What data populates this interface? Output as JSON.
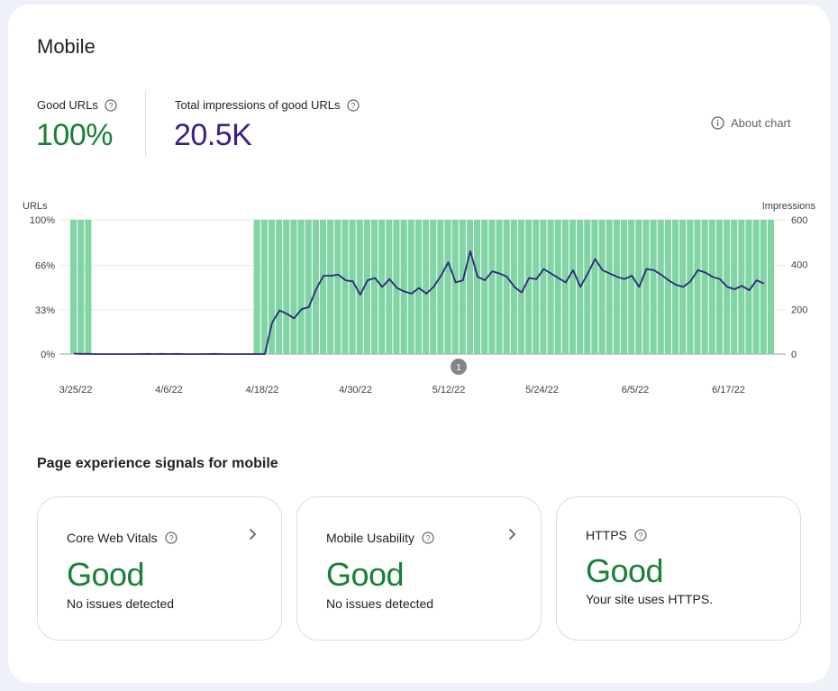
{
  "page": {
    "title": "Mobile"
  },
  "metrics": {
    "good_urls": {
      "label": "Good URLs",
      "value": "100%",
      "color": "#188038"
    },
    "impressions": {
      "label": "Total impressions of good URLs",
      "value": "20.5K",
      "color": "#3c1e86"
    }
  },
  "about_chart": {
    "label": "About chart"
  },
  "chart_data": {
    "type": "bar",
    "left_axis": {
      "title": "URLs",
      "ticks": [
        "100%",
        "66%",
        "33%",
        "0%"
      ],
      "range": [
        0,
        100
      ]
    },
    "right_axis": {
      "title": "Impressions",
      "ticks": [
        "600",
        "400",
        "200",
        "0"
      ],
      "range": [
        0,
        600
      ]
    },
    "x_labels": [
      "3/25/22",
      "4/6/22",
      "4/18/22",
      "4/30/22",
      "5/12/22",
      "5/24/22",
      "6/5/22",
      "6/17/22"
    ],
    "annotation": "1",
    "bar_color": "#81d4a4",
    "line_color": "#2a2a7c",
    "series": [
      {
        "name": "Good URLs",
        "axis": "left",
        "unit": "%",
        "values": [
          100,
          100,
          100,
          0,
          0,
          0,
          0,
          0,
          0,
          0,
          0,
          0,
          0,
          0,
          0,
          0,
          0,
          0,
          0,
          0,
          0,
          0,
          0,
          0,
          0,
          100,
          100,
          100,
          100,
          100,
          100,
          100,
          100,
          100,
          100,
          100,
          100,
          100,
          100,
          100,
          100,
          100,
          100,
          100,
          100,
          100,
          100,
          100,
          100,
          100,
          100,
          100,
          100,
          100,
          100,
          100,
          100,
          100,
          100,
          100,
          100,
          100,
          100,
          100,
          100,
          100,
          100,
          100,
          100,
          100,
          100,
          100,
          100,
          100,
          100,
          100,
          100,
          100,
          100,
          100,
          100,
          100,
          100,
          100,
          100,
          100,
          100,
          100,
          100,
          100,
          100,
          100,
          100,
          100,
          100,
          100
        ]
      },
      {
        "name": "Impressions",
        "axis": "right",
        "values": [
          2,
          1,
          1,
          0,
          0,
          0,
          0,
          0,
          0,
          0,
          1,
          0,
          1,
          0,
          1,
          0,
          0,
          0,
          0,
          1,
          0,
          0,
          0,
          0,
          0,
          0,
          0,
          140,
          195,
          180,
          160,
          200,
          210,
          290,
          350,
          350,
          355,
          330,
          325,
          265,
          330,
          340,
          300,
          335,
          295,
          280,
          270,
          295,
          270,
          300,
          350,
          410,
          320,
          330,
          460,
          345,
          330,
          370,
          360,
          345,
          300,
          275,
          340,
          335,
          380,
          360,
          340,
          320,
          375,
          300,
          360,
          425,
          375,
          360,
          345,
          335,
          350,
          300,
          380,
          375,
          355,
          330,
          310,
          300,
          325,
          375,
          365,
          345,
          335,
          300,
          290,
          305,
          285,
          330,
          315
        ]
      }
    ]
  },
  "signals": {
    "title": "Page experience signals for mobile",
    "cards": [
      {
        "title": "Core Web Vitals",
        "status": "Good",
        "desc": "No issues detected"
      },
      {
        "title": "Mobile Usability",
        "status": "Good",
        "desc": "No issues detected"
      },
      {
        "title": "HTTPS",
        "status": "Good",
        "desc": "Your site uses HTTPS."
      }
    ]
  }
}
